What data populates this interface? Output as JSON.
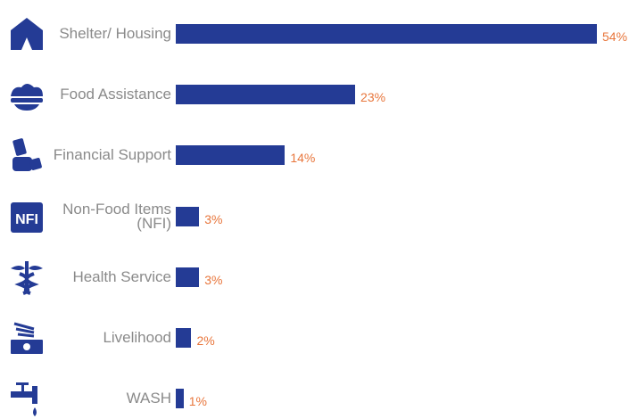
{
  "chart_data": {
    "type": "bar",
    "categories": [
      "Shelter/ Housing",
      "Food Assistance",
      "Financial Support",
      "Non-Food Items (NFI)",
      "Health Service",
      "Livelihood",
      "WASH"
    ],
    "values": [
      54,
      23,
      14,
      3,
      3,
      2,
      1
    ],
    "value_labels": [
      "54%",
      "23%",
      "14%",
      "3%",
      "3%",
      "2%",
      "1%"
    ],
    "color": "#243b95"
  }
}
